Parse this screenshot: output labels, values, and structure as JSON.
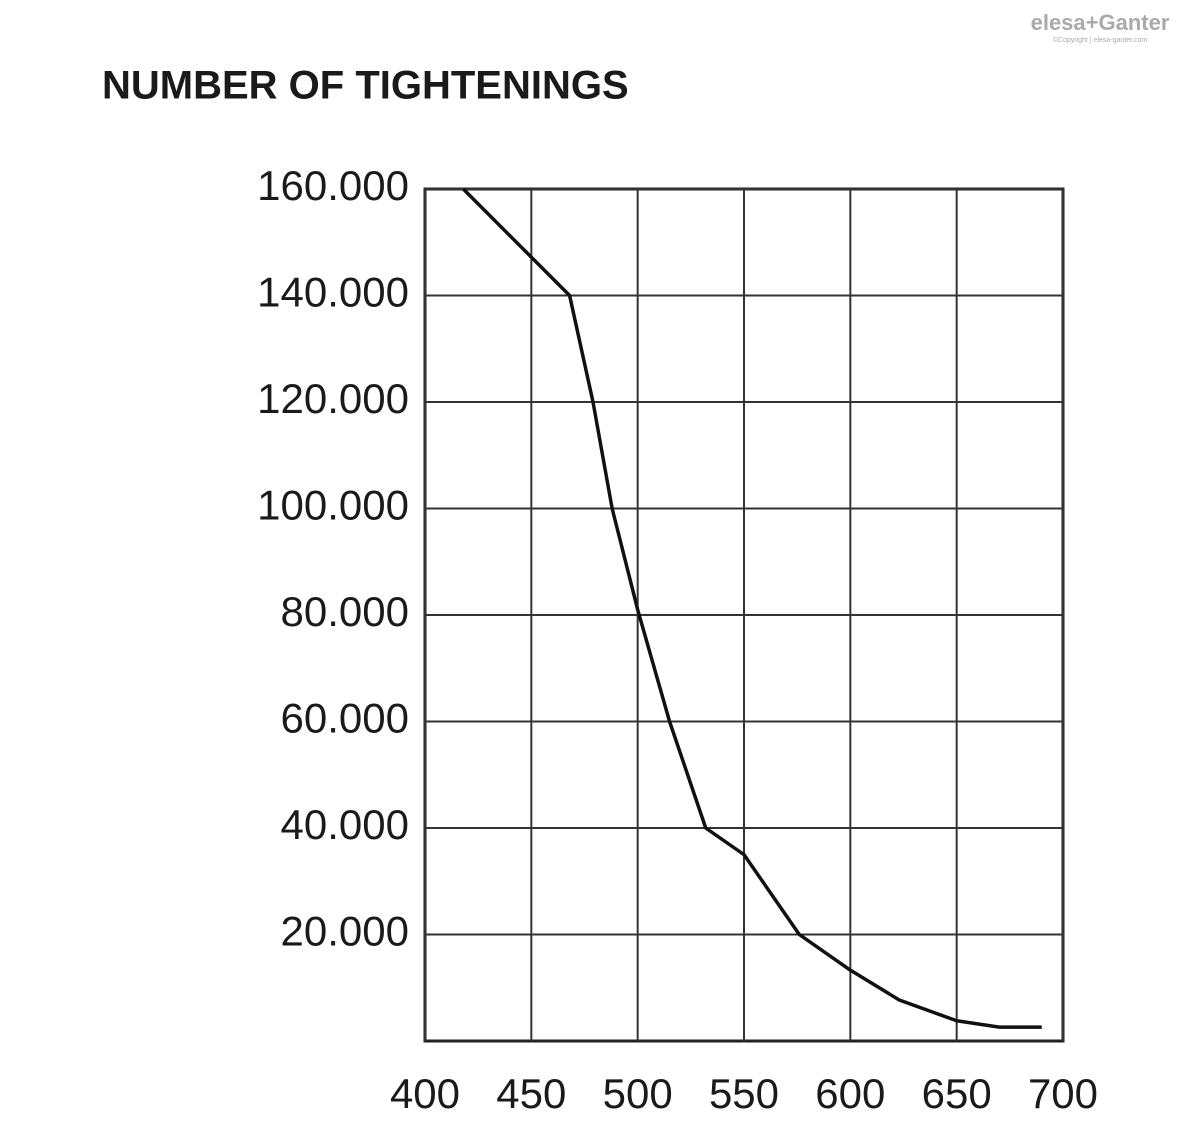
{
  "chart_data": {
    "type": "line",
    "title": "NUMBER OF TIGHTENINGS",
    "x": [
      418,
      468,
      479,
      488,
      500,
      515,
      532,
      550,
      576,
      600,
      623,
      650,
      670,
      690
    ],
    "values": [
      160000,
      140000,
      120000,
      100000,
      81000,
      60000,
      40000,
      35000,
      20000,
      13300,
      7700,
      3800,
      2600,
      2600
    ],
    "color": "#111111",
    "xlim": [
      400,
      700
    ],
    "xticks": [
      400,
      450,
      500,
      550,
      600,
      650,
      700
    ],
    "ylim": [
      0,
      160000
    ],
    "yticks": [
      {
        "value": 20000,
        "label": "20.000"
      },
      {
        "value": 40000,
        "label": "40.000"
      },
      {
        "value": 60000,
        "label": "60.000"
      },
      {
        "value": 80000,
        "label": "80.000"
      },
      {
        "value": 100000,
        "label": "100.000"
      },
      {
        "value": 120000,
        "label": "120.000"
      },
      {
        "value": 140000,
        "label": "140.000"
      },
      {
        "value": 160000,
        "label": "160.000"
      }
    ],
    "grid": true
  },
  "logo": {
    "text": "elesa+Ganter",
    "copyright": "©Copyright | elesa-ganter.com"
  }
}
